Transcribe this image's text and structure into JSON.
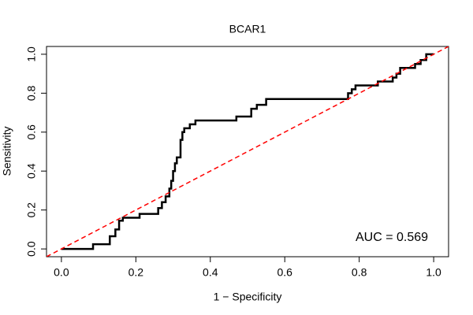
{
  "chart_data": {
    "type": "line",
    "title": "BCAR1",
    "xlabel": "1 − Specificity",
    "ylabel": "Sensitivity",
    "annotation": "AUC = 0.569",
    "xlim": [
      -0.04,
      1.04
    ],
    "ylim": [
      -0.04,
      1.04
    ],
    "xticks": [
      {
        "value": 0,
        "label": "0.0"
      },
      0.2,
      0.4,
      0.6,
      0.8,
      {
        "value": 1,
        "label": "1.0"
      }
    ],
    "yticks": [
      {
        "value": 0,
        "label": "0.0"
      },
      0.2,
      0.4,
      0.6,
      0.8,
      {
        "value": 1,
        "label": "1.0"
      }
    ],
    "grid": false,
    "series": [
      {
        "color": "#000000",
        "dashed": false,
        "x": [
          0,
          0.085,
          0.085,
          0.13,
          0.13,
          0.145,
          0.145,
          0.155,
          0.155,
          0.165,
          0.165,
          0.21,
          0.21,
          0.26,
          0.26,
          0.27,
          0.27,
          0.28,
          0.28,
          0.29,
          0.29,
          0.295,
          0.295,
          0.3,
          0.3,
          0.305,
          0.305,
          0.31,
          0.31,
          0.32,
          0.32,
          0.325,
          0.325,
          0.33,
          0.33,
          0.345,
          0.345,
          0.36,
          0.36,
          0.47,
          0.47,
          0.51,
          0.51,
          0.525,
          0.525,
          0.55,
          0.55,
          0.77,
          0.77,
          0.78,
          0.78,
          0.79,
          0.79,
          0.85,
          0.85,
          0.89,
          0.89,
          0.9,
          0.9,
          0.91,
          0.91,
          0.95,
          0.95,
          0.965,
          0.965,
          0.98,
          0.98,
          1
        ],
        "values": [
          0,
          0,
          0.024,
          0.024,
          0.065,
          0.065,
          0.1,
          0.1,
          0.145,
          0.145,
          0.16,
          0.16,
          0.18,
          0.18,
          0.21,
          0.21,
          0.24,
          0.24,
          0.27,
          0.27,
          0.31,
          0.31,
          0.35,
          0.35,
          0.4,
          0.4,
          0.44,
          0.44,
          0.47,
          0.47,
          0.56,
          0.56,
          0.6,
          0.6,
          0.62,
          0.62,
          0.64,
          0.64,
          0.66,
          0.66,
          0.68,
          0.68,
          0.72,
          0.72,
          0.74,
          0.74,
          0.77,
          0.77,
          0.8,
          0.8,
          0.82,
          0.82,
          0.84,
          0.84,
          0.86,
          0.86,
          0.88,
          0.88,
          0.9,
          0.9,
          0.93,
          0.93,
          0.95,
          0.95,
          0.97,
          0.97,
          1,
          1
        ]
      },
      {
        "color": "#ff0000",
        "dashed": true,
        "x": [
          -0.04,
          1.04
        ],
        "values": [
          -0.04,
          1.04
        ]
      }
    ]
  }
}
